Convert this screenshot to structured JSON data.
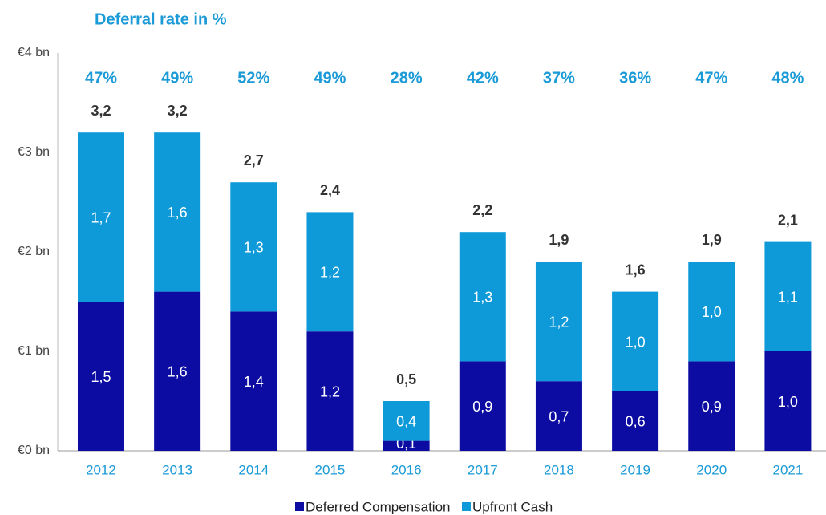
{
  "chart_data": {
    "type": "stacked_bar",
    "title": "Deferral rate in %",
    "categories": [
      "2012",
      "2013",
      "2014",
      "2015",
      "2016",
      "2017",
      "2018",
      "2019",
      "2020",
      "2021"
    ],
    "series": [
      {
        "name": "Deferred Compensation",
        "color": "#0c0ca3",
        "values": [
          1.5,
          1.6,
          1.4,
          1.2,
          0.1,
          0.9,
          0.7,
          0.6,
          0.9,
          1.0
        ],
        "value_labels": [
          "1,5",
          "1,6",
          "1,4",
          "1,2",
          "0,1",
          "0,9",
          "0,7",
          "0,6",
          "0,9",
          "1,0"
        ]
      },
      {
        "name": "Upfront Cash",
        "color": "#0e99d8",
        "values": [
          1.7,
          1.6,
          1.3,
          1.2,
          0.4,
          1.3,
          1.2,
          1.0,
          1.0,
          1.1
        ],
        "value_labels": [
          "1,7",
          "1,6",
          "1,3",
          "1,2",
          "0,4",
          "1,3",
          "1,2",
          "1,0",
          "1,0",
          "1,1"
        ]
      }
    ],
    "totals": {
      "values": [
        3.2,
        3.2,
        2.7,
        2.4,
        0.5,
        2.2,
        1.9,
        1.6,
        1.9,
        2.1
      ],
      "value_labels": [
        "3,2",
        "3,2",
        "2,7",
        "2,4",
        "0,5",
        "2,2",
        "1,9",
        "1,6",
        "1,9",
        "2,1"
      ]
    },
    "deferral_rate": {
      "values": [
        47,
        49,
        52,
        49,
        28,
        42,
        37,
        36,
        47,
        48
      ],
      "value_labels": [
        "47%",
        "49%",
        "52%",
        "49%",
        "28%",
        "42%",
        "37%",
        "36%",
        "47%",
        "48%"
      ]
    },
    "ylim": [
      0,
      4
    ],
    "yticks": [
      {
        "value": 0,
        "label": "€0 bn"
      },
      {
        "value": 1,
        "label": "€1 bn"
      },
      {
        "value": 2,
        "label": "€2 bn"
      },
      {
        "value": 3,
        "label": "€3 bn"
      },
      {
        "value": 4,
        "label": "€4 bn"
      }
    ],
    "legend": "bottom"
  }
}
